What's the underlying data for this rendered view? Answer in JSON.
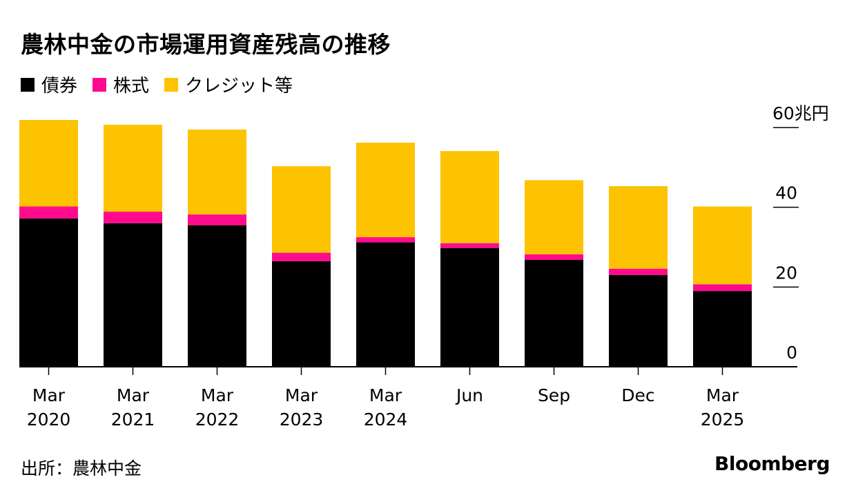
{
  "header": {
    "title": "農林中金の市場運用資産残高の推移"
  },
  "legend": [
    {
      "label": "債券",
      "color": "#000000"
    },
    {
      "label": "株式",
      "color": "#ff0a8c"
    },
    {
      "label": "クレジット等",
      "color": "#fdc300"
    }
  ],
  "footer": {
    "source": "出所：農林中金",
    "brand": "Bloomberg"
  },
  "chart_data": {
    "type": "bar",
    "stacked": true,
    "categories": [
      {
        "line1": "Mar",
        "line2": "2020"
      },
      {
        "line1": "Mar",
        "line2": "2021"
      },
      {
        "line1": "Mar",
        "line2": "2022"
      },
      {
        "line1": "Mar",
        "line2": "2023"
      },
      {
        "line1": "Mar",
        "line2": "2024"
      },
      {
        "line1": "Jun",
        "line2": ""
      },
      {
        "line1": "Sep",
        "line2": ""
      },
      {
        "line1": "Dec",
        "line2": ""
      },
      {
        "line1": "Mar",
        "line2": "2025"
      }
    ],
    "series": [
      {
        "name": "債券",
        "color": "#000000",
        "values": [
          37.2,
          36.0,
          35.5,
          26.5,
          31.2,
          29.8,
          26.8,
          23.0,
          19.0
        ]
      },
      {
        "name": "株式",
        "color": "#ff0a8c",
        "values": [
          3.0,
          2.9,
          2.7,
          2.1,
          1.3,
          1.2,
          1.4,
          1.6,
          1.7
        ]
      },
      {
        "name": "クレジット等",
        "color": "#fdc300",
        "values": [
          21.7,
          21.8,
          21.3,
          21.7,
          23.7,
          23.1,
          18.6,
          20.7,
          19.5
        ]
      }
    ],
    "y_axis": {
      "min": 0,
      "max": 60,
      "ticks": [
        {
          "value": 0,
          "label": "0"
        },
        {
          "value": 20,
          "label": "20"
        },
        {
          "value": 40,
          "label": "40"
        },
        {
          "value": 60,
          "label": "60兆円"
        }
      ],
      "position": "right"
    },
    "xlabel": "",
    "ylabel": ""
  }
}
